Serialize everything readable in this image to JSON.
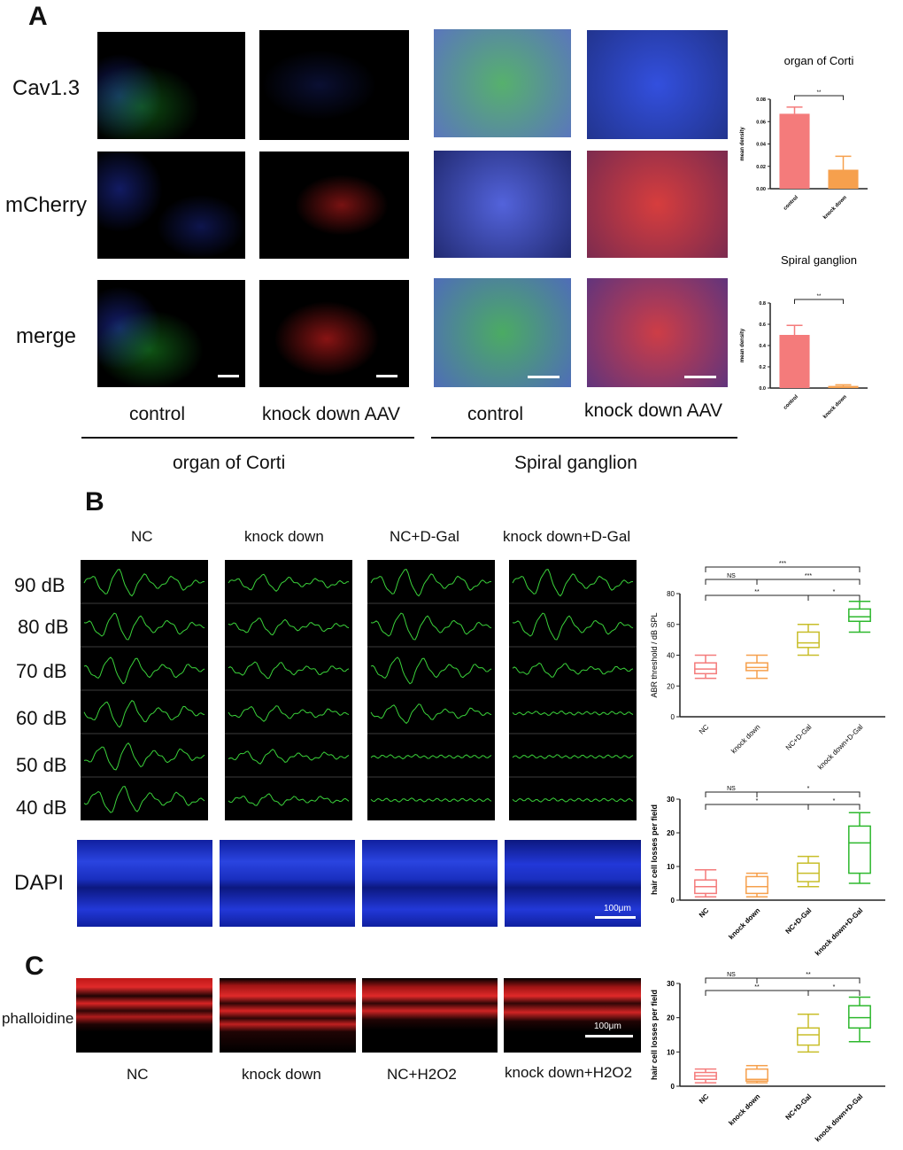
{
  "panels": {
    "a": "A",
    "b": "B",
    "c": "C"
  },
  "panel_a": {
    "row_labels": [
      "Cav1.3",
      "mCherry",
      "merge"
    ],
    "col_labels": [
      "control",
      "knock down AAV",
      "control",
      "knock down AAV"
    ],
    "group_labels": [
      "organ of Corti",
      "Spiral ganglion"
    ]
  },
  "panel_b": {
    "col_labels": [
      "NC",
      "knock down",
      "NC+D-Gal",
      "knock down+D-Gal"
    ],
    "db_labels": [
      "90 dB",
      "80 dB",
      "70 dB",
      "60 dB",
      "50 dB",
      "40 dB"
    ],
    "dapi_label": "DAPI",
    "scale_label": "100μm"
  },
  "panel_c": {
    "row_label": "phalloidine",
    "col_labels": [
      "NC",
      "knock down",
      "NC+H2O2",
      "knock down+H2O2"
    ],
    "scale_label": "100μm"
  },
  "colors": {
    "red": "#F47B7B",
    "orange": "#F6A04D",
    "olive": "#C8BE2A",
    "green": "#2DB82D",
    "dapi": "#1a2fd0",
    "fitc": "#1faa2a",
    "mcherry": "#d42020"
  },
  "chart_data": [
    {
      "type": "bar",
      "title": "organ of Corti",
      "ylabel": "mean density",
      "categories": [
        "control",
        "knock down"
      ],
      "values": [
        0.067,
        0.017
      ],
      "errors": [
        0.006,
        0.012
      ],
      "ylim": [
        0,
        0.08
      ],
      "yticks": [
        "0.00",
        "0.02",
        "0.04",
        "0.06",
        "0.08"
      ],
      "significance": [
        {
          "pair": [
            0,
            1
          ],
          "label": "**"
        }
      ],
      "colors": [
        "#F47B7B",
        "#F6A04D"
      ]
    },
    {
      "type": "bar",
      "title": "Spiral ganglion",
      "ylabel": "mean density",
      "categories": [
        "control",
        "knock down"
      ],
      "values": [
        0.5,
        0.02
      ],
      "errors": [
        0.09,
        0.01
      ],
      "ylim": [
        0,
        0.8
      ],
      "yticks": [
        "0.0",
        "0.2",
        "0.4",
        "0.6",
        "0.8"
      ],
      "significance": [
        {
          "pair": [
            0,
            1
          ],
          "label": "**"
        }
      ],
      "colors": [
        "#F47B7B",
        "#F6A04D"
      ]
    },
    {
      "type": "box",
      "ylabel": "ABR threshold / dB SPL",
      "categories": [
        "NC",
        "knock down",
        "NC+D-Gal",
        "knock down+D-Gal"
      ],
      "boxes": [
        {
          "min": 25,
          "q1": 28,
          "median": 31,
          "q3": 35,
          "max": 40
        },
        {
          "min": 25,
          "q1": 30,
          "median": 32,
          "q3": 35,
          "max": 40
        },
        {
          "min": 40,
          "q1": 45,
          "median": 48,
          "q3": 55,
          "max": 60
        },
        {
          "min": 55,
          "q1": 62,
          "median": 65,
          "q3": 70,
          "max": 75
        }
      ],
      "ylim": [
        0,
        80
      ],
      "yticks": [
        "0",
        "20",
        "40",
        "60",
        "80"
      ],
      "significance": [
        {
          "pair": [
            0,
            3
          ],
          "label": "***"
        },
        {
          "pair": [
            0,
            1
          ],
          "label": "NS"
        },
        {
          "pair": [
            1,
            3
          ],
          "label": "***"
        },
        {
          "pair": [
            0,
            2
          ],
          "label": "**"
        },
        {
          "pair": [
            2,
            3
          ],
          "label": "*"
        }
      ],
      "colors": [
        "#F47B7B",
        "#F6A04D",
        "#C8BE2A",
        "#2DB82D"
      ]
    },
    {
      "type": "box",
      "ylabel": "hair cell losses per field",
      "categories": [
        "NC",
        "knock down",
        "NC+D-Gal",
        "knock down+D-Gal"
      ],
      "boxes": [
        {
          "min": 1,
          "q1": 2,
          "median": 4,
          "q3": 6,
          "max": 9
        },
        {
          "min": 1,
          "q1": 2,
          "median": 4,
          "q3": 7,
          "max": 8
        },
        {
          "min": 4,
          "q1": 5.5,
          "median": 8,
          "q3": 11,
          "max": 13
        },
        {
          "min": 5,
          "q1": 8,
          "median": 17,
          "q3": 22,
          "max": 26
        }
      ],
      "ylim": [
        0,
        30
      ],
      "yticks": [
        "0",
        "10",
        "20",
        "30"
      ],
      "significance": [
        {
          "pair": [
            0,
            1
          ],
          "label": "NS"
        },
        {
          "pair": [
            1,
            3
          ],
          "label": "*"
        },
        {
          "pair": [
            0,
            2
          ],
          "label": "*"
        },
        {
          "pair": [
            2,
            3
          ],
          "label": "*"
        }
      ],
      "colors": [
        "#F47B7B",
        "#F6A04D",
        "#C8BE2A",
        "#2DB82D"
      ]
    },
    {
      "type": "box",
      "ylabel": "hair cell losses per field",
      "categories": [
        "NC",
        "knock down",
        "NC+D-Gal",
        "knock down+D-Gal"
      ],
      "boxes": [
        {
          "min": 1,
          "q1": 2,
          "median": 3,
          "q3": 4,
          "max": 5
        },
        {
          "min": 1,
          "q1": 1.5,
          "median": 2,
          "q3": 5,
          "max": 6
        },
        {
          "min": 10,
          "q1": 12,
          "median": 15,
          "q3": 17,
          "max": 21
        },
        {
          "min": 13,
          "q1": 17,
          "median": 20,
          "q3": 23.5,
          "max": 26
        }
      ],
      "ylim": [
        0,
        30
      ],
      "yticks": [
        "0",
        "10",
        "20",
        "30"
      ],
      "significance": [
        {
          "pair": [
            0,
            1
          ],
          "label": "NS"
        },
        {
          "pair": [
            1,
            3
          ],
          "label": "**"
        },
        {
          "pair": [
            0,
            2
          ],
          "label": "**"
        },
        {
          "pair": [
            2,
            3
          ],
          "label": "*"
        }
      ],
      "colors": [
        "#F47B7B",
        "#F6A04D",
        "#C8BE2A",
        "#2DB82D"
      ]
    }
  ]
}
